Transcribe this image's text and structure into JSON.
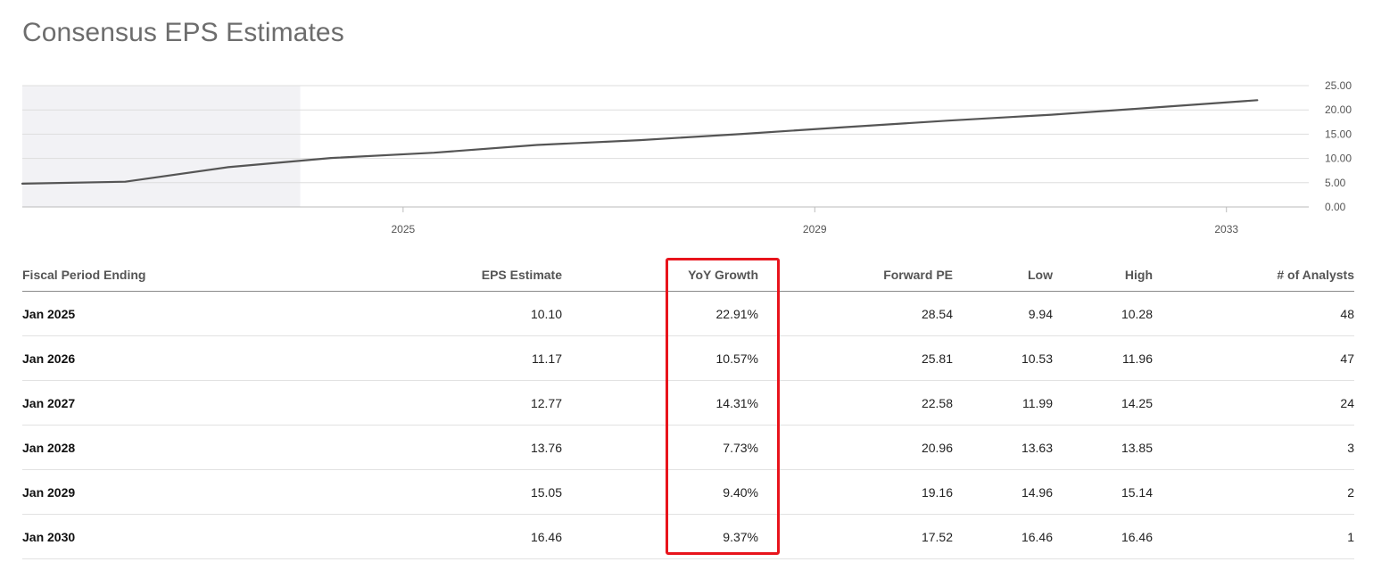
{
  "title": "Consensus EPS Estimates",
  "colors": {
    "line": "#555555",
    "actuals_shade": "#f2f2f5",
    "grid": "#dddddd",
    "highlight": "#e8141c"
  },
  "chart_data": {
    "type": "line",
    "title": "",
    "xlabel": "",
    "ylabel": "",
    "x_range": [
      2021.3,
      2033.8
    ],
    "ylim": [
      0,
      25
    ],
    "y_ticks": [
      0,
      5,
      10,
      15,
      20,
      25
    ],
    "y_tick_labels": [
      "0.00",
      "5.00",
      "10.00",
      "15.00",
      "20.00",
      "25.00"
    ],
    "x_ticks": [
      2025,
      2029,
      2033
    ],
    "x_tick_labels": [
      "2025",
      "2029",
      "2033"
    ],
    "grid": true,
    "actuals_shaded_until": 2024.0,
    "series": [
      {
        "values": [
          [
            2021.3,
            4.8
          ],
          [
            2022.3,
            5.2
          ],
          [
            2023.3,
            8.2
          ],
          [
            2024.3,
            10.1
          ],
          [
            2025.3,
            11.17
          ],
          [
            2026.3,
            12.77
          ],
          [
            2027.3,
            13.76
          ],
          [
            2028.3,
            15.05
          ],
          [
            2029.3,
            16.46
          ],
          [
            2030.3,
            17.8
          ],
          [
            2031.3,
            19.0
          ],
          [
            2032.3,
            20.5
          ],
          [
            2033.3,
            22.0
          ]
        ]
      }
    ]
  },
  "table": {
    "headers": [
      "Fiscal Period Ending",
      "EPS Estimate",
      "YoY Growth",
      "Forward PE",
      "Low",
      "High",
      "# of Analysts"
    ],
    "rows": [
      [
        "Jan 2025",
        "10.10",
        "22.91%",
        "28.54",
        "9.94",
        "10.28",
        "48"
      ],
      [
        "Jan 2026",
        "11.17",
        "10.57%",
        "25.81",
        "10.53",
        "11.96",
        "47"
      ],
      [
        "Jan 2027",
        "12.77",
        "14.31%",
        "22.58",
        "11.99",
        "14.25",
        "24"
      ],
      [
        "Jan 2028",
        "13.76",
        "7.73%",
        "20.96",
        "13.63",
        "13.85",
        "3"
      ],
      [
        "Jan 2029",
        "15.05",
        "9.40%",
        "19.16",
        "14.96",
        "15.14",
        "2"
      ],
      [
        "Jan 2030",
        "16.46",
        "9.37%",
        "17.52",
        "16.46",
        "16.46",
        "1"
      ]
    ]
  }
}
